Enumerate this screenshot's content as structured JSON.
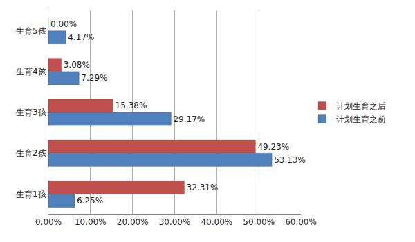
{
  "chart_data": {
    "type": "bar",
    "orientation": "horizontal",
    "categories": [
      "生育1孩",
      "生育2孩",
      "生育3孩",
      "生育4孩",
      "生育5孩"
    ],
    "series": [
      {
        "name": "计划生育之后",
        "color": "#c0504d",
        "values": [
          32.31,
          49.23,
          15.38,
          3.08,
          0.0
        ],
        "value_labels": [
          "32.31%",
          "49.23%",
          "15.38%",
          "3.08%",
          "0.00%"
        ]
      },
      {
        "name": "计划生育之前",
        "color": "#4f81bd",
        "values": [
          6.25,
          53.13,
          29.17,
          7.29,
          4.17
        ],
        "value_labels": [
          "6.25%",
          "53.13%",
          "29.17%",
          "7.29%",
          "4.17%"
        ]
      }
    ],
    "xlim": [
      0,
      60
    ],
    "xticks": [
      {
        "value": 0,
        "label": "0.00%"
      },
      {
        "value": 10,
        "label": "10.00%"
      },
      {
        "value": 20,
        "label": "20.00%"
      },
      {
        "value": 30,
        "label": "30.00%"
      },
      {
        "value": 40,
        "label": "40.00%"
      },
      {
        "value": 50,
        "label": "50.00%"
      },
      {
        "value": 60,
        "label": "60.00%"
      }
    ],
    "grid": true,
    "data_labels": true,
    "legend": "right"
  }
}
